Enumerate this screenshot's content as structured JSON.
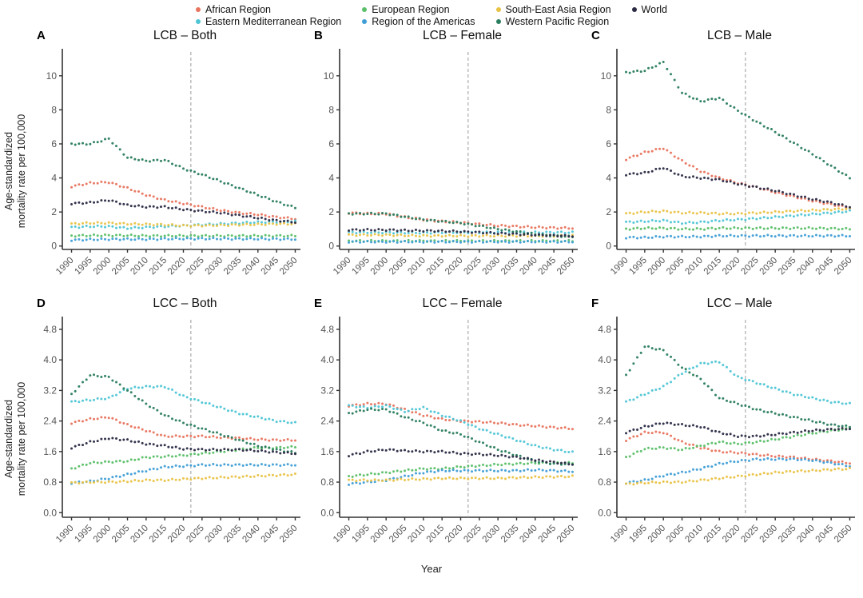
{
  "colors": {
    "african": "#e8745e",
    "eastern_med": "#4ec5d5",
    "european": "#5abf68",
    "americas": "#3f9ed6",
    "se_asia": "#e9c245",
    "western_pacific": "#2a7d5e",
    "world": "#2a2a44",
    "dashed_line": "#aaaaaa",
    "axis": "#333333",
    "tick_text": "#555555"
  },
  "legend": {
    "columns": [
      [
        {
          "label": "African Region",
          "color_key": "african"
        },
        {
          "label": "Eastern Mediterranean Region",
          "color_key": "eastern_med"
        }
      ],
      [
        {
          "label": "European Region",
          "color_key": "european"
        },
        {
          "label": "Region of the Americas",
          "color_key": "americas"
        }
      ],
      [
        {
          "label": "South-East Asia Region",
          "color_key": "se_asia"
        },
        {
          "label": "Western Pacific Region",
          "color_key": "western_pacific"
        }
      ],
      [
        {
          "label": "World",
          "color_key": "world"
        }
      ]
    ]
  },
  "axes": {
    "x_label": "Year",
    "x_ticks": [
      1990,
      1995,
      2000,
      2005,
      2010,
      2015,
      2020,
      2025,
      2030,
      2035,
      2040,
      2045,
      2050
    ],
    "x_range": [
      1990,
      2050
    ],
    "y_label_lines": [
      "Age-standardized",
      "mortality rate per 100,000"
    ],
    "dashed_line_x": 2022
  },
  "chart_data": [
    {
      "type": "scatter",
      "letter": "A",
      "title": "LCB – Both",
      "ylim": [
        -0.2,
        11.4
      ],
      "yticks": [
        0,
        2,
        4,
        6,
        8,
        10
      ],
      "ytick_decimals": 0,
      "x": [
        1990,
        1995,
        2000,
        2005,
        2010,
        2015,
        2020,
        2025,
        2030,
        2035,
        2040,
        2045,
        2050
      ],
      "series": [
        {
          "name": "African Region",
          "color_key": "african",
          "values": [
            3.5,
            3.7,
            3.75,
            3.4,
            3.0,
            2.7,
            2.5,
            2.3,
            2.1,
            1.95,
            1.85,
            1.7,
            1.6
          ]
        },
        {
          "name": "Eastern Mediterranean Region",
          "color_key": "eastern_med",
          "values": [
            1.1,
            1.15,
            1.15,
            1.05,
            1.1,
            1.15,
            1.2,
            1.25,
            1.3,
            1.35,
            1.4,
            1.42,
            1.45
          ]
        },
        {
          "name": "European Region",
          "color_key": "european",
          "values": [
            0.6,
            0.62,
            0.63,
            0.62,
            0.6,
            0.6,
            0.6,
            0.6,
            0.6,
            0.6,
            0.6,
            0.6,
            0.6
          ]
        },
        {
          "name": "Region of the Americas",
          "color_key": "americas",
          "values": [
            0.35,
            0.38,
            0.4,
            0.4,
            0.4,
            0.42,
            0.43,
            0.43,
            0.43,
            0.42,
            0.42,
            0.41,
            0.4
          ]
        },
        {
          "name": "South-East Asia Region",
          "color_key": "se_asia",
          "values": [
            1.3,
            1.35,
            1.35,
            1.3,
            1.28,
            1.25,
            1.2,
            1.2,
            1.22,
            1.25,
            1.27,
            1.3,
            1.3
          ]
        },
        {
          "name": "Western Pacific Region",
          "color_key": "western_pacific",
          "values": [
            6.0,
            6.0,
            6.3,
            5.2,
            5.0,
            5.05,
            4.55,
            4.2,
            3.8,
            3.4,
            3.0,
            2.6,
            2.25
          ]
        },
        {
          "name": "World",
          "color_key": "world",
          "values": [
            2.5,
            2.55,
            2.7,
            2.4,
            2.3,
            2.3,
            2.15,
            2.05,
            1.95,
            1.8,
            1.65,
            1.5,
            1.4
          ]
        }
      ]
    },
    {
      "type": "scatter",
      "letter": "B",
      "title": "LCB – Female",
      "ylim": [
        -0.2,
        11.4
      ],
      "yticks": [
        0,
        2,
        4,
        6,
        8,
        10
      ],
      "ytick_decimals": 0,
      "x": [
        1990,
        1995,
        2000,
        2005,
        2010,
        2015,
        2020,
        2025,
        2030,
        2035,
        2040,
        2045,
        2050
      ],
      "series": [
        {
          "name": "African Region",
          "color_key": "african",
          "values": [
            1.95,
            1.9,
            1.9,
            1.7,
            1.55,
            1.45,
            1.38,
            1.28,
            1.2,
            1.15,
            1.1,
            1.07,
            1.05
          ]
        },
        {
          "name": "Eastern Mediterranean Region",
          "color_key": "eastern_med",
          "values": [
            0.8,
            0.8,
            0.8,
            0.78,
            0.78,
            0.8,
            0.8,
            0.8,
            0.8,
            0.8,
            0.8,
            0.8,
            0.8
          ]
        },
        {
          "name": "European Region",
          "color_key": "european",
          "values": [
            0.3,
            0.3,
            0.3,
            0.3,
            0.3,
            0.3,
            0.3,
            0.3,
            0.3,
            0.3,
            0.3,
            0.3,
            0.3
          ]
        },
        {
          "name": "Region of the Americas",
          "color_key": "americas",
          "values": [
            0.25,
            0.25,
            0.25,
            0.25,
            0.25,
            0.25,
            0.25,
            0.25,
            0.25,
            0.25,
            0.25,
            0.25,
            0.25
          ]
        },
        {
          "name": "South-East Asia Region",
          "color_key": "se_asia",
          "values": [
            0.65,
            0.65,
            0.65,
            0.62,
            0.6,
            0.6,
            0.6,
            0.6,
            0.6,
            0.6,
            0.6,
            0.6,
            0.6
          ]
        },
        {
          "name": "Western Pacific Region",
          "color_key": "western_pacific",
          "values": [
            1.9,
            1.9,
            1.9,
            1.72,
            1.55,
            1.45,
            1.35,
            1.18,
            1.0,
            0.85,
            0.7,
            0.6,
            0.55
          ]
        },
        {
          "name": "World",
          "color_key": "world",
          "values": [
            0.95,
            0.95,
            0.95,
            0.92,
            0.9,
            0.88,
            0.85,
            0.8,
            0.75,
            0.7,
            0.65,
            0.62,
            0.58
          ]
        }
      ]
    },
    {
      "type": "scatter",
      "letter": "C",
      "title": "LCB – Male",
      "ylim": [
        -0.2,
        11.4
      ],
      "yticks": [
        0,
        2,
        4,
        6,
        8,
        10
      ],
      "ytick_decimals": 0,
      "x": [
        1990,
        1995,
        2000,
        2005,
        2010,
        2015,
        2020,
        2025,
        2030,
        2035,
        2040,
        2045,
        2050
      ],
      "series": [
        {
          "name": "African Region",
          "color_key": "african",
          "values": [
            5.1,
            5.5,
            5.75,
            5.0,
            4.4,
            4.0,
            3.7,
            3.45,
            3.15,
            2.9,
            2.65,
            2.45,
            2.25
          ]
        },
        {
          "name": "Eastern Mediterranean Region",
          "color_key": "eastern_med",
          "values": [
            1.4,
            1.45,
            1.5,
            1.35,
            1.4,
            1.5,
            1.55,
            1.62,
            1.7,
            1.78,
            1.87,
            1.95,
            2.05
          ]
        },
        {
          "name": "European Region",
          "color_key": "european",
          "values": [
            1.0,
            1.05,
            1.05,
            1.0,
            1.0,
            1.05,
            1.05,
            1.05,
            1.05,
            1.05,
            1.05,
            1.03,
            1.0
          ]
        },
        {
          "name": "Region of the Americas",
          "color_key": "americas",
          "values": [
            0.5,
            0.5,
            0.55,
            0.55,
            0.55,
            0.6,
            0.6,
            0.6,
            0.6,
            0.6,
            0.6,
            0.6,
            0.6
          ]
        },
        {
          "name": "South-East Asia Region",
          "color_key": "se_asia",
          "values": [
            1.9,
            2.0,
            2.05,
            1.95,
            1.95,
            1.9,
            1.9,
            1.95,
            2.0,
            2.05,
            2.1,
            2.15,
            2.2
          ]
        },
        {
          "name": "Western Pacific Region",
          "color_key": "western_pacific",
          "values": [
            10.2,
            10.3,
            10.8,
            9.0,
            8.5,
            8.7,
            7.95,
            7.3,
            6.7,
            6.05,
            5.4,
            4.7,
            4.0
          ]
        },
        {
          "name": "World",
          "color_key": "world",
          "values": [
            4.2,
            4.3,
            4.6,
            4.1,
            4.0,
            3.9,
            3.65,
            3.45,
            3.25,
            3.0,
            2.75,
            2.55,
            2.3
          ]
        }
      ]
    },
    {
      "type": "scatter",
      "letter": "D",
      "title": "LCC – Both",
      "ylim": [
        -0.12,
        5.05
      ],
      "yticks": [
        0.0,
        0.8,
        1.6,
        2.4,
        3.2,
        4.0,
        4.8
      ],
      "ytick_decimals": 1,
      "x": [
        1990,
        1995,
        2000,
        2005,
        2010,
        2015,
        2020,
        2025,
        2030,
        2035,
        2040,
        2045,
        2050
      ],
      "series": [
        {
          "name": "African Region",
          "color_key": "african",
          "values": [
            2.35,
            2.45,
            2.5,
            2.3,
            2.15,
            2.0,
            2.0,
            2.0,
            1.97,
            1.95,
            1.92,
            1.9,
            1.9
          ]
        },
        {
          "name": "Eastern Mediterranean Region",
          "color_key": "eastern_med",
          "values": [
            2.9,
            2.95,
            3.0,
            3.25,
            3.3,
            3.3,
            3.05,
            2.9,
            2.75,
            2.6,
            2.5,
            2.4,
            2.35
          ]
        },
        {
          "name": "European Region",
          "color_key": "european",
          "values": [
            1.15,
            1.3,
            1.33,
            1.35,
            1.45,
            1.47,
            1.5,
            1.55,
            1.6,
            1.65,
            1.7,
            1.7,
            1.72
          ]
        },
        {
          "name": "Region of the Americas",
          "color_key": "americas",
          "values": [
            0.78,
            0.82,
            0.9,
            1.0,
            1.1,
            1.2,
            1.22,
            1.25,
            1.25,
            1.25,
            1.25,
            1.25,
            1.25
          ]
        },
        {
          "name": "South-East Asia Region",
          "color_key": "se_asia",
          "values": [
            0.78,
            0.8,
            0.8,
            0.82,
            0.85,
            0.85,
            0.88,
            0.9,
            0.92,
            0.94,
            0.96,
            0.98,
            1.0
          ]
        },
        {
          "name": "Western Pacific Region",
          "color_key": "western_pacific",
          "values": [
            3.1,
            3.6,
            3.55,
            3.2,
            2.85,
            2.55,
            2.35,
            2.2,
            2.05,
            1.9,
            1.75,
            1.65,
            1.57
          ]
        },
        {
          "name": "World",
          "color_key": "world",
          "values": [
            1.7,
            1.85,
            1.95,
            1.9,
            1.8,
            1.75,
            1.67,
            1.65,
            1.65,
            1.65,
            1.62,
            1.58,
            1.55
          ]
        }
      ]
    },
    {
      "type": "scatter",
      "letter": "E",
      "title": "LCC – Female",
      "ylim": [
        -0.12,
        5.05
      ],
      "yticks": [
        0.0,
        0.8,
        1.6,
        2.4,
        3.2,
        4.0,
        4.8
      ],
      "ytick_decimals": 1,
      "x": [
        1990,
        1995,
        2000,
        2005,
        2010,
        2015,
        2020,
        2025,
        2030,
        2035,
        2040,
        2045,
        2050
      ],
      "series": [
        {
          "name": "African Region",
          "color_key": "african",
          "values": [
            2.8,
            2.85,
            2.85,
            2.7,
            2.55,
            2.45,
            2.4,
            2.38,
            2.35,
            2.3,
            2.27,
            2.23,
            2.2
          ]
        },
        {
          "name": "Eastern Mediterranean Region",
          "color_key": "eastern_med",
          "values": [
            2.8,
            2.75,
            2.8,
            2.65,
            2.75,
            2.55,
            2.4,
            2.2,
            2.05,
            1.9,
            1.75,
            1.65,
            1.58
          ]
        },
        {
          "name": "European Region",
          "color_key": "european",
          "values": [
            0.95,
            1.0,
            1.05,
            1.1,
            1.15,
            1.15,
            1.2,
            1.23,
            1.26,
            1.28,
            1.3,
            1.3,
            1.3
          ]
        },
        {
          "name": "Region of the Americas",
          "color_key": "americas",
          "values": [
            0.75,
            0.8,
            0.85,
            0.95,
            1.05,
            1.1,
            1.1,
            1.1,
            1.1,
            1.1,
            1.12,
            1.1,
            1.08
          ]
        },
        {
          "name": "South-East Asia Region",
          "color_key": "se_asia",
          "values": [
            0.85,
            0.85,
            0.85,
            0.87,
            0.88,
            0.9,
            0.9,
            0.9,
            0.9,
            0.92,
            0.93,
            0.94,
            0.95
          ]
        },
        {
          "name": "Western Pacific Region",
          "color_key": "western_pacific",
          "values": [
            2.6,
            2.7,
            2.7,
            2.5,
            2.35,
            2.15,
            2.05,
            1.85,
            1.65,
            1.5,
            1.35,
            1.28,
            1.27
          ]
        },
        {
          "name": "World",
          "color_key": "world",
          "values": [
            1.5,
            1.6,
            1.65,
            1.62,
            1.6,
            1.6,
            1.55,
            1.53,
            1.5,
            1.45,
            1.38,
            1.32,
            1.27
          ]
        }
      ]
    },
    {
      "type": "scatter",
      "letter": "F",
      "title": "LCC – Male",
      "ylim": [
        -0.12,
        5.05
      ],
      "yticks": [
        0.0,
        0.8,
        1.6,
        2.4,
        3.2,
        4.0,
        4.8
      ],
      "ytick_decimals": 1,
      "x": [
        1990,
        1995,
        2000,
        2005,
        2010,
        2015,
        2020,
        2025,
        2030,
        2035,
        2040,
        2045,
        2050
      ],
      "series": [
        {
          "name": "African Region",
          "color_key": "african",
          "values": [
            1.9,
            2.1,
            2.1,
            1.85,
            1.7,
            1.6,
            1.57,
            1.52,
            1.48,
            1.45,
            1.4,
            1.35,
            1.3
          ]
        },
        {
          "name": "Eastern Mediterranean Region",
          "color_key": "eastern_med",
          "values": [
            2.9,
            3.1,
            3.3,
            3.65,
            3.9,
            3.95,
            3.55,
            3.4,
            3.25,
            3.1,
            3.0,
            2.9,
            2.85
          ]
        },
        {
          "name": "European Region",
          "color_key": "european",
          "values": [
            1.45,
            1.67,
            1.7,
            1.65,
            1.75,
            1.85,
            1.8,
            1.85,
            1.92,
            2.0,
            2.08,
            2.15,
            2.2
          ]
        },
        {
          "name": "Region of the Americas",
          "color_key": "americas",
          "values": [
            0.78,
            0.85,
            0.97,
            1.05,
            1.15,
            1.28,
            1.35,
            1.4,
            1.4,
            1.4,
            1.37,
            1.3,
            1.22
          ]
        },
        {
          "name": "South-East Asia Region",
          "color_key": "se_asia",
          "values": [
            0.75,
            0.78,
            0.8,
            0.8,
            0.85,
            0.9,
            0.95,
            1.0,
            1.05,
            1.08,
            1.1,
            1.13,
            1.15
          ]
        },
        {
          "name": "Western Pacific Region",
          "color_key": "western_pacific",
          "values": [
            3.6,
            4.35,
            4.25,
            3.8,
            3.5,
            3.0,
            2.85,
            2.7,
            2.6,
            2.5,
            2.4,
            2.3,
            2.25
          ]
        },
        {
          "name": "World",
          "color_key": "world",
          "values": [
            2.1,
            2.25,
            2.35,
            2.3,
            2.25,
            2.1,
            2.0,
            2.0,
            2.05,
            2.1,
            2.15,
            2.18,
            2.2
          ]
        }
      ]
    }
  ]
}
